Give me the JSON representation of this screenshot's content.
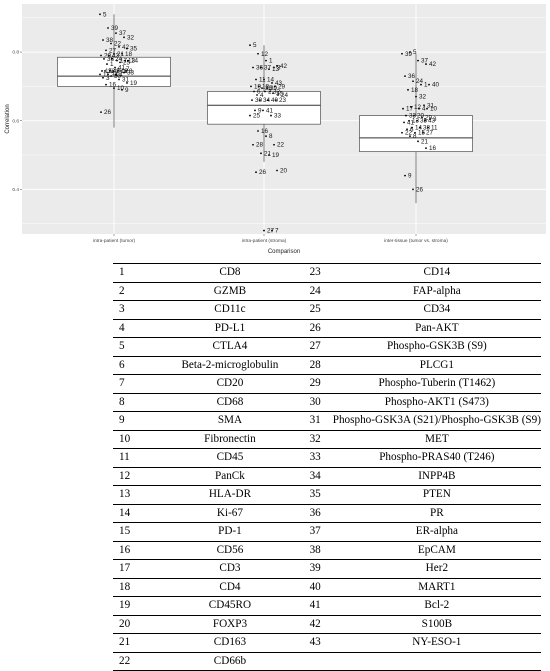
{
  "chart_data": {
    "type": "box",
    "ylabel": "Correlation",
    "xlabel": "Comparison",
    "categories": [
      "intra-patient (tumor)",
      "intra-patient (stroma)",
      "inter-tissue (tumor vs. stroma)"
    ],
    "yticks": [
      0.4,
      0.6,
      0.8
    ],
    "ylim": [
      0.27,
      0.94
    ],
    "grid": true,
    "boxes": [
      {
        "min": 0.58,
        "q1": 0.7,
        "median": 0.73,
        "q3": 0.785,
        "max": 0.91
      },
      {
        "min": 0.48,
        "q1": 0.59,
        "median": 0.645,
        "q3": 0.685,
        "max": 0.82
      },
      {
        "min": 0.36,
        "q1": 0.51,
        "median": 0.55,
        "q3": 0.615,
        "max": 0.795
      }
    ],
    "series": [
      {
        "labels": [
          "5",
          "39",
          "37",
          "32",
          "38",
          "22",
          "42",
          "35",
          "27",
          "21",
          "18",
          "20",
          "43",
          "17",
          "13",
          "36",
          "24",
          "25",
          "14",
          "1",
          "41",
          "7",
          "15",
          "40",
          "12",
          "8",
          "23",
          "2",
          "6",
          "11",
          "34",
          "4",
          "33",
          "3",
          "30",
          "31",
          "19",
          "16",
          "10",
          "9",
          "26"
        ],
        "values": [
          0.91,
          0.87,
          0.855,
          0.843,
          0.835,
          0.825,
          0.815,
          0.81,
          0.805,
          0.795,
          0.795,
          0.79,
          0.79,
          0.775,
          0.775,
          0.78,
          0.78,
          0.77,
          0.775,
          0.765,
          0.755,
          0.75,
          0.745,
          0.745,
          0.745,
          0.745,
          0.745,
          0.745,
          0.745,
          0.735,
          0.735,
          0.735,
          0.74,
          0.725,
          0.73,
          0.72,
          0.71,
          0.705,
          0.695,
          0.69,
          0.625
        ]
      },
      {
        "labels": [
          "5",
          "12",
          "1",
          "3",
          "36",
          "37",
          "13",
          "42",
          "11",
          "14",
          "43",
          "10",
          "18",
          "39",
          "29",
          "6",
          "38",
          "32",
          "24",
          "4",
          "2",
          "35",
          "30",
          "34",
          "40",
          "23",
          "9",
          "41",
          "33",
          "25",
          "16",
          "8",
          "22",
          "28",
          "21",
          "19",
          "20",
          "26",
          "27",
          "7"
        ],
        "values": [
          0.82,
          0.795,
          0.775,
          0.755,
          0.755,
          0.755,
          0.75,
          0.76,
          0.72,
          0.72,
          0.71,
          0.7,
          0.7,
          0.695,
          0.7,
          0.685,
          0.695,
          0.685,
          0.675,
          0.675,
          0.685,
          0.68,
          0.66,
          0.66,
          0.66,
          0.66,
          0.63,
          0.63,
          0.615,
          0.615,
          0.57,
          0.555,
          0.53,
          0.53,
          0.505,
          0.5,
          0.455,
          0.45,
          0.28,
          0.28
        ]
      },
      {
        "labels": [
          "39",
          "5",
          "37",
          "42",
          "36",
          "24",
          "1",
          "40",
          "18",
          "32",
          "31",
          "17",
          "12",
          "4",
          "10",
          "33",
          "20",
          "29",
          "3",
          "13",
          "35",
          "43",
          "41",
          "14",
          "38",
          "11",
          "6",
          "15",
          "27",
          "22",
          "8",
          "21",
          "16",
          "9",
          "26"
        ],
        "values": [
          0.795,
          0.8,
          0.775,
          0.765,
          0.73,
          0.715,
          0.705,
          0.705,
          0.69,
          0.67,
          0.645,
          0.635,
          0.64,
          0.635,
          0.635,
          0.615,
          0.615,
          0.61,
          0.605,
          0.6,
          0.6,
          0.6,
          0.595,
          0.58,
          0.58,
          0.58,
          0.575,
          0.565,
          0.565,
          0.565,
          0.555,
          0.54,
          0.52,
          0.44,
          0.4
        ]
      }
    ],
    "legend_table": [
      {
        "n": "1",
        "name": "CD8",
        "n2": "23",
        "name2": "CD14"
      },
      {
        "n": "2",
        "name": "GZMB",
        "n2": "24",
        "name2": "FAP-alpha"
      },
      {
        "n": "3",
        "name": "CD11c",
        "n2": "25",
        "name2": "CD34"
      },
      {
        "n": "4",
        "name": "PD-L1",
        "n2": "26",
        "name2": "Pan-AKT"
      },
      {
        "n": "5",
        "name": "CTLA4",
        "n2": "27",
        "name2": "Phospho-GSK3B (S9)"
      },
      {
        "n": "6",
        "name": "Beta-2-microglobulin",
        "n2": "28",
        "name2": "PLCG1"
      },
      {
        "n": "7",
        "name": "CD20",
        "n2": "29",
        "name2": "Phospho-Tuberin (T1462)"
      },
      {
        "n": "8",
        "name": "CD68",
        "n2": "30",
        "name2": "Phospho-AKT1 (S473)"
      },
      {
        "n": "9",
        "name": "SMA",
        "n2": "31",
        "name2": "Phospho-GSK3A (S21)/Phospho-GSK3B (S9)"
      },
      {
        "n": "10",
        "name": "Fibronectin",
        "n2": "32",
        "name2": "MET"
      },
      {
        "n": "11",
        "name": "CD45",
        "n2": "33",
        "name2": "Phospho-PRAS40 (T246)"
      },
      {
        "n": "12",
        "name": "PanCk",
        "n2": "34",
        "name2": "INPP4B"
      },
      {
        "n": "13",
        "name": "HLA-DR",
        "n2": "35",
        "name2": "PTEN"
      },
      {
        "n": "14",
        "name": "Ki-67",
        "n2": "36",
        "name2": "PR"
      },
      {
        "n": "15",
        "name": "PD-1",
        "n2": "37",
        "name2": "ER-alpha"
      },
      {
        "n": "16",
        "name": "CD56",
        "n2": "38",
        "name2": "EpCAM"
      },
      {
        "n": "17",
        "name": "CD3",
        "n2": "39",
        "name2": "Her2"
      },
      {
        "n": "18",
        "name": "CD4",
        "n2": "40",
        "name2": "MART1"
      },
      {
        "n": "19",
        "name": "CD45RO",
        "n2": "41",
        "name2": "Bcl-2"
      },
      {
        "n": "20",
        "name": "FOXP3",
        "n2": "42",
        "name2": "S100B"
      },
      {
        "n": "21",
        "name": "CD163",
        "n2": "43",
        "name2": "NY-ESO-1"
      },
      {
        "n": "22",
        "name": "CD66b",
        "n2": "",
        "name2": ""
      }
    ]
  }
}
